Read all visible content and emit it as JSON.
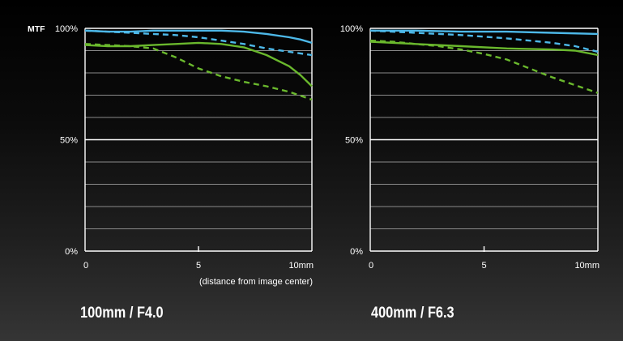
{
  "chart_data": [
    {
      "type": "line",
      "title": "100mm / F4.0",
      "ylabel": "MTF",
      "xlabel": "(distance from image center)",
      "x_ticks": [
        "0",
        "5",
        "10mm"
      ],
      "y_ticks": [
        "100%",
        "50%",
        "0%"
      ],
      "xlim": [
        0,
        10
      ],
      "ylim": [
        0,
        100
      ],
      "grid": true,
      "series": [
        {
          "color": "#4db8e8",
          "style": "solid",
          "x": [
            0,
            1,
            2,
            3,
            4,
            5,
            6,
            7,
            8,
            9,
            9.5,
            10
          ],
          "y": [
            99,
            98.5,
            98.5,
            99,
            99,
            99,
            99,
            98.5,
            97.5,
            96,
            95,
            93.5
          ]
        },
        {
          "color": "#4db8e8",
          "style": "dashed",
          "x": [
            0,
            1,
            2,
            3,
            4,
            5,
            6,
            7,
            8,
            9,
            10
          ],
          "y": [
            99,
            98.5,
            98,
            97.5,
            97,
            96,
            94.5,
            93,
            91,
            89.5,
            88
          ]
        },
        {
          "color": "#6ab82d",
          "style": "solid",
          "x": [
            0,
            1,
            2,
            3,
            4,
            5,
            6,
            7,
            8,
            9,
            9.5,
            10
          ],
          "y": [
            92.5,
            92,
            92,
            92.5,
            93,
            93.5,
            93,
            91.5,
            88,
            83,
            79,
            74
          ]
        },
        {
          "color": "#6ab82d",
          "style": "dashed",
          "x": [
            0,
            1,
            2,
            3,
            4,
            5,
            6,
            7,
            8,
            9,
            10
          ],
          "y": [
            93,
            92.5,
            92,
            91,
            87,
            82,
            78.5,
            76,
            74,
            71.5,
            68
          ]
        }
      ]
    },
    {
      "type": "line",
      "title": "400mm / F6.3",
      "x_ticks": [
        "0",
        "5",
        "10mm"
      ],
      "y_ticks": [
        "100%",
        "50%",
        "0%"
      ],
      "xlim": [
        0,
        10
      ],
      "ylim": [
        0,
        100
      ],
      "grid": true,
      "series": [
        {
          "color": "#4db8e8",
          "style": "solid",
          "x": [
            0,
            2,
            4,
            6,
            8,
            10
          ],
          "y": [
            99,
            99,
            98.5,
            98.5,
            98,
            97.5
          ]
        },
        {
          "color": "#4db8e8",
          "style": "dashed",
          "x": [
            0,
            2,
            4,
            6,
            8,
            9,
            10
          ],
          "y": [
            99,
            98,
            97,
            95.5,
            93.5,
            92,
            89.5
          ]
        },
        {
          "color": "#6ab82d",
          "style": "solid",
          "x": [
            0,
            2,
            4,
            6,
            8,
            9,
            10
          ],
          "y": [
            94,
            93,
            92,
            91,
            90.5,
            90,
            88
          ]
        },
        {
          "color": "#6ab82d",
          "style": "dashed",
          "x": [
            0,
            1,
            2,
            3,
            4,
            5,
            6,
            7,
            8,
            9,
            10
          ],
          "y": [
            94.5,
            94,
            93,
            92,
            90.5,
            88.5,
            86,
            82,
            78,
            74.5,
            71
          ]
        }
      ]
    }
  ]
}
